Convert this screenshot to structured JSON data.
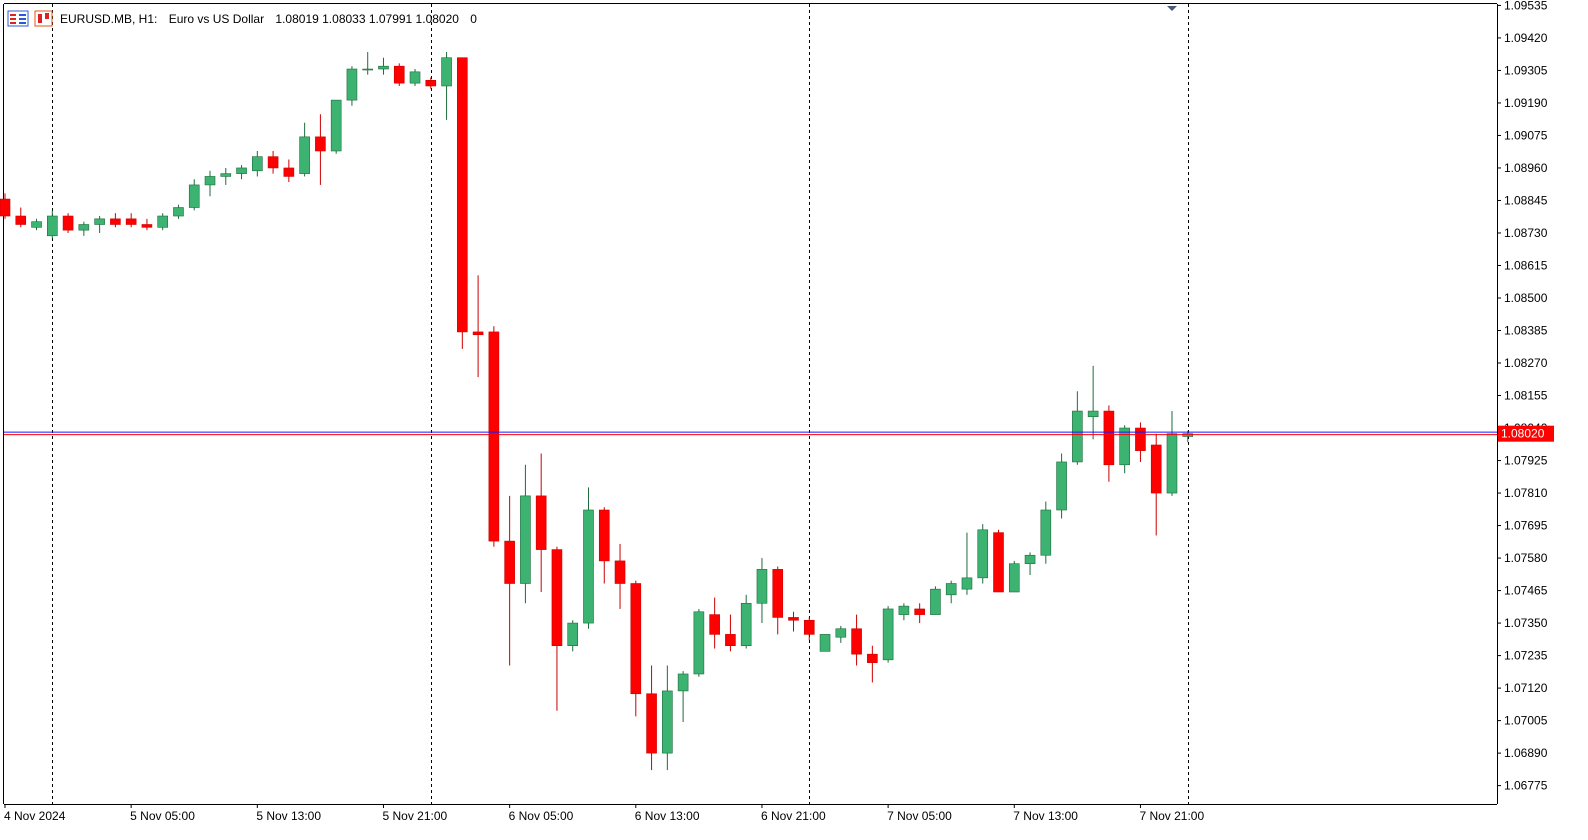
{
  "header": {
    "symbol_period": "EURUSD.MB, H1:",
    "description": "Euro vs US Dollar",
    "ohlc": "1.08019 1.08033 1.07991 1.08020",
    "volume": "0"
  },
  "colors": {
    "bull": "#3cb371",
    "bear": "#ff0000",
    "bull_border": "#1e6b3c",
    "bear_border": "#cc0000",
    "wick_bull": "#1e6b3c",
    "wick_bear": "#cc0000",
    "price_line_red": "#ff0000",
    "price_line_blue": "#1a1aff",
    "grid": "#000000",
    "axis_text": "#000000"
  },
  "chart_data": {
    "type": "candlestick",
    "symbol": "EURUSD.MB",
    "timeframe": "H1",
    "current_price": 1.0802,
    "current_price_label": "1.08020",
    "ylim": [
      1.0671,
      1.0954
    ],
    "y_ticks": [
      "1.09535",
      "1.09420",
      "1.09305",
      "1.09190",
      "1.09075",
      "1.08960",
      "1.08845",
      "1.08730",
      "1.08615",
      "1.08500",
      "1.08385",
      "1.08270",
      "1.08155",
      "1.08040",
      "1.07925",
      "1.07810",
      "1.07695",
      "1.07580",
      "1.07465",
      "1.07350",
      "1.07235",
      "1.07120",
      "1.07005",
      "1.06890",
      "1.06775"
    ],
    "x_labels": [
      {
        "text": "4 Nov 2024",
        "index": 0
      },
      {
        "text": "5 Nov 05:00",
        "index": 8
      },
      {
        "text": "5 Nov 13:00",
        "index": 16
      },
      {
        "text": "5 Nov 21:00",
        "index": 24
      },
      {
        "text": "6 Nov 05:00",
        "index": 32
      },
      {
        "text": "6 Nov 13:00",
        "index": 40
      },
      {
        "text": "6 Nov 21:00",
        "index": 48
      },
      {
        "text": "7 Nov 05:00",
        "index": 56
      },
      {
        "text": "7 Nov 13:00",
        "index": 64
      },
      {
        "text": "7 Nov 21:00",
        "index": 72
      }
    ],
    "separators": [
      3,
      27,
      51,
      75
    ],
    "candles": [
      {
        "o": 1.0885,
        "h": 1.0887,
        "l": 1.0878,
        "c": 1.0879
      },
      {
        "o": 1.0879,
        "h": 1.0882,
        "l": 1.0875,
        "c": 1.0876
      },
      {
        "o": 1.0875,
        "h": 1.0878,
        "l": 1.0874,
        "c": 1.0877
      },
      {
        "o": 1.0872,
        "h": 1.0881,
        "l": 1.0871,
        "c": 1.0879
      },
      {
        "o": 1.0879,
        "h": 1.088,
        "l": 1.0873,
        "c": 1.0874
      },
      {
        "o": 1.0874,
        "h": 1.0877,
        "l": 1.0872,
        "c": 1.0876
      },
      {
        "o": 1.0876,
        "h": 1.0879,
        "l": 1.0873,
        "c": 1.0878
      },
      {
        "o": 1.0878,
        "h": 1.088,
        "l": 1.0875,
        "c": 1.0876
      },
      {
        "o": 1.0878,
        "h": 1.088,
        "l": 1.0875,
        "c": 1.0876
      },
      {
        "o": 1.0876,
        "h": 1.0878,
        "l": 1.0874,
        "c": 1.0875
      },
      {
        "o": 1.0875,
        "h": 1.088,
        "l": 1.0874,
        "c": 1.0879
      },
      {
        "o": 1.0879,
        "h": 1.0883,
        "l": 1.0878,
        "c": 1.0882
      },
      {
        "o": 1.0882,
        "h": 1.0892,
        "l": 1.0881,
        "c": 1.089
      },
      {
        "o": 1.089,
        "h": 1.0895,
        "l": 1.0886,
        "c": 1.0893
      },
      {
        "o": 1.0893,
        "h": 1.0896,
        "l": 1.089,
        "c": 1.0894
      },
      {
        "o": 1.0894,
        "h": 1.0897,
        "l": 1.0892,
        "c": 1.0896
      },
      {
        "o": 1.0895,
        "h": 1.0902,
        "l": 1.0893,
        "c": 1.09
      },
      {
        "o": 1.09,
        "h": 1.0902,
        "l": 1.0894,
        "c": 1.0896
      },
      {
        "o": 1.0896,
        "h": 1.0899,
        "l": 1.0891,
        "c": 1.0893
      },
      {
        "o": 1.0894,
        "h": 1.0912,
        "l": 1.0893,
        "c": 1.0907
      },
      {
        "o": 1.0907,
        "h": 1.0915,
        "l": 1.089,
        "c": 1.0902
      },
      {
        "o": 1.0902,
        "h": 1.092,
        "l": 1.0901,
        "c": 1.092
      },
      {
        "o": 1.092,
        "h": 1.0932,
        "l": 1.0918,
        "c": 1.0931
      },
      {
        "o": 1.0931,
        "h": 1.0937,
        "l": 1.0929,
        "c": 1.0931
      },
      {
        "o": 1.0931,
        "h": 1.0935,
        "l": 1.0929,
        "c": 1.0932
      },
      {
        "o": 1.0932,
        "h": 1.0933,
        "l": 1.0925,
        "c": 1.0926
      },
      {
        "o": 1.0926,
        "h": 1.0931,
        "l": 1.0925,
        "c": 1.093
      },
      {
        "o": 1.0927,
        "h": 1.0928,
        "l": 1.0924,
        "c": 1.0925
      },
      {
        "o": 1.0925,
        "h": 1.0937,
        "l": 1.0913,
        "c": 1.0935
      },
      {
        "o": 1.0935,
        "h": 1.0935,
        "l": 1.0832,
        "c": 1.0838
      },
      {
        "o": 1.0838,
        "h": 1.0858,
        "l": 1.0822,
        "c": 1.0837
      },
      {
        "o": 1.0838,
        "h": 1.084,
        "l": 1.0762,
        "c": 1.0764
      },
      {
        "o": 1.0764,
        "h": 1.078,
        "l": 1.072,
        "c": 1.0749
      },
      {
        "o": 1.0749,
        "h": 1.0791,
        "l": 1.0742,
        "c": 1.078
      },
      {
        "o": 1.078,
        "h": 1.0795,
        "l": 1.0746,
        "c": 1.0761
      },
      {
        "o": 1.0761,
        "h": 1.0762,
        "l": 1.0704,
        "c": 1.0727
      },
      {
        "o": 1.0727,
        "h": 1.0736,
        "l": 1.0725,
        "c": 1.0735
      },
      {
        "o": 1.0735,
        "h": 1.0783,
        "l": 1.0733,
        "c": 1.0775
      },
      {
        "o": 1.0775,
        "h": 1.0776,
        "l": 1.0749,
        "c": 1.0757
      },
      {
        "o": 1.0757,
        "h": 1.0763,
        "l": 1.074,
        "c": 1.0749
      },
      {
        "o": 1.0749,
        "h": 1.075,
        "l": 1.0702,
        "c": 1.071
      },
      {
        "o": 1.071,
        "h": 1.072,
        "l": 1.0683,
        "c": 1.0689
      },
      {
        "o": 1.0689,
        "h": 1.072,
        "l": 1.0683,
        "c": 1.0711
      },
      {
        "o": 1.0711,
        "h": 1.0718,
        "l": 1.07,
        "c": 1.0717
      },
      {
        "o": 1.0717,
        "h": 1.074,
        "l": 1.0716,
        "c": 1.0739
      },
      {
        "o": 1.0738,
        "h": 1.0744,
        "l": 1.0726,
        "c": 1.0731
      },
      {
        "o": 1.0731,
        "h": 1.0738,
        "l": 1.0725,
        "c": 1.0727
      },
      {
        "o": 1.0727,
        "h": 1.0745,
        "l": 1.0726,
        "c": 1.0742
      },
      {
        "o": 1.0742,
        "h": 1.0758,
        "l": 1.0735,
        "c": 1.0754
      },
      {
        "o": 1.0754,
        "h": 1.0755,
        "l": 1.0731,
        "c": 1.0737
      },
      {
        "o": 1.0737,
        "h": 1.0739,
        "l": 1.0732,
        "c": 1.0736
      },
      {
        "o": 1.0736,
        "h": 1.0737,
        "l": 1.0729,
        "c": 1.0731
      },
      {
        "o": 1.0725,
        "h": 1.0731,
        "l": 1.0725,
        "c": 1.0731
      },
      {
        "o": 1.073,
        "h": 1.0734,
        "l": 1.0728,
        "c": 1.0733
      },
      {
        "o": 1.0733,
        "h": 1.0738,
        "l": 1.072,
        "c": 1.0724
      },
      {
        "o": 1.0724,
        "h": 1.0727,
        "l": 1.0714,
        "c": 1.0721
      },
      {
        "o": 1.0722,
        "h": 1.0741,
        "l": 1.0721,
        "c": 1.074
      },
      {
        "o": 1.0738,
        "h": 1.0742,
        "l": 1.0736,
        "c": 1.0741
      },
      {
        "o": 1.074,
        "h": 1.0742,
        "l": 1.0735,
        "c": 1.0738
      },
      {
        "o": 1.0738,
        "h": 1.0748,
        "l": 1.0738,
        "c": 1.0747
      },
      {
        "o": 1.0745,
        "h": 1.075,
        "l": 1.0742,
        "c": 1.0749
      },
      {
        "o": 1.0747,
        "h": 1.0767,
        "l": 1.0745,
        "c": 1.0751
      },
      {
        "o": 1.0751,
        "h": 1.077,
        "l": 1.0749,
        "c": 1.0768
      },
      {
        "o": 1.0767,
        "h": 1.0768,
        "l": 1.0746,
        "c": 1.0746
      },
      {
        "o": 1.0746,
        "h": 1.0757,
        "l": 1.0746,
        "c": 1.0756
      },
      {
        "o": 1.0756,
        "h": 1.076,
        "l": 1.0752,
        "c": 1.0759
      },
      {
        "o": 1.0759,
        "h": 1.0778,
        "l": 1.0756,
        "c": 1.0775
      },
      {
        "o": 1.0775,
        "h": 1.0795,
        "l": 1.0772,
        "c": 1.0792
      },
      {
        "o": 1.0792,
        "h": 1.0817,
        "l": 1.0791,
        "c": 1.081
      },
      {
        "o": 1.0808,
        "h": 1.0826,
        "l": 1.08,
        "c": 1.081
      },
      {
        "o": 1.081,
        "h": 1.0812,
        "l": 1.0785,
        "c": 1.0791
      },
      {
        "o": 1.0791,
        "h": 1.0805,
        "l": 1.0788,
        "c": 1.0804
      },
      {
        "o": 1.0804,
        "h": 1.0806,
        "l": 1.0792,
        "c": 1.0796
      },
      {
        "o": 1.0798,
        "h": 1.0802,
        "l": 1.0766,
        "c": 1.0781
      },
      {
        "o": 1.0781,
        "h": 1.081,
        "l": 1.078,
        "c": 1.0802
      },
      {
        "o": 1.0801,
        "h": 1.0803,
        "l": 1.0799,
        "c": 1.0802
      }
    ]
  }
}
